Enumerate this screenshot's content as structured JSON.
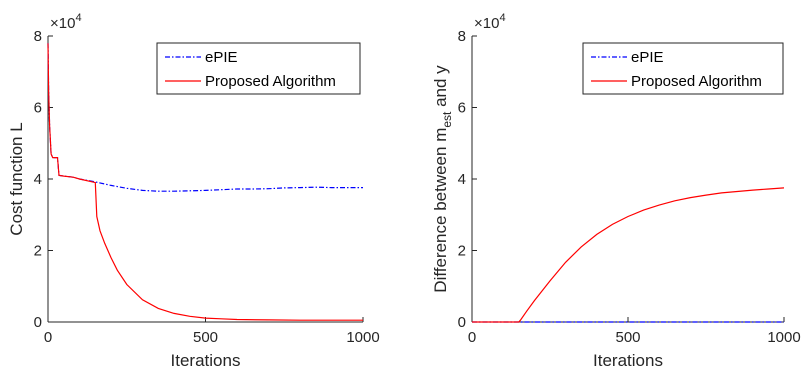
{
  "chart_data": [
    {
      "type": "line",
      "xlabel": "Iterations",
      "ylabel": "Cost function L",
      "exponent_label": "×10",
      "exponent_power": "4",
      "xlim": [
        0,
        1000
      ],
      "ylim": [
        0,
        8
      ],
      "y_scale_factor": 10000,
      "xticks": [
        0,
        500,
        1000
      ],
      "yticks": [
        0,
        2,
        4,
        6,
        8
      ],
      "legend_position": "top-right",
      "series": [
        {
          "name": "ePIE",
          "color": "#0000ff",
          "style": "dash-dot",
          "x": [
            0,
            2,
            5,
            10,
            15,
            30,
            35,
            50,
            80,
            100,
            150,
            200,
            250,
            300,
            350,
            400,
            450,
            500,
            550,
            600,
            650,
            700,
            750,
            800,
            850,
            900,
            950,
            1000
          ],
          "y": [
            7.8,
            6.5,
            5.5,
            4.7,
            4.6,
            4.6,
            4.1,
            4.08,
            4.05,
            4.0,
            3.92,
            3.82,
            3.74,
            3.68,
            3.66,
            3.66,
            3.67,
            3.68,
            3.7,
            3.72,
            3.72,
            3.73,
            3.75,
            3.76,
            3.77,
            3.76,
            3.76,
            3.76
          ]
        },
        {
          "name": "Proposed Algorithm",
          "color": "#ff0000",
          "style": "solid",
          "x": [
            0,
            2,
            5,
            10,
            15,
            30,
            35,
            50,
            80,
            100,
            150,
            155,
            165,
            180,
            200,
            220,
            250,
            300,
            350,
            400,
            450,
            500,
            550,
            600,
            700,
            800,
            900,
            1000
          ],
          "y": [
            7.8,
            6.5,
            5.5,
            4.7,
            4.6,
            4.6,
            4.1,
            4.08,
            4.05,
            4.0,
            3.9,
            2.95,
            2.55,
            2.2,
            1.8,
            1.45,
            1.05,
            0.62,
            0.38,
            0.24,
            0.16,
            0.11,
            0.09,
            0.07,
            0.06,
            0.05,
            0.05,
            0.05
          ]
        }
      ]
    },
    {
      "type": "line",
      "xlabel": "Iterations",
      "ylabel": "Difference between m",
      "ylabel_subscript": "est",
      "ylabel_suffix": " and y",
      "exponent_label": "×10",
      "exponent_power": "4",
      "xlim": [
        0,
        1000
      ],
      "ylim": [
        0,
        8
      ],
      "y_scale_factor": 10000,
      "xticks": [
        0,
        500,
        1000
      ],
      "yticks": [
        0,
        2,
        4,
        6,
        8
      ],
      "legend_position": "top-right",
      "series": [
        {
          "name": "ePIE",
          "color": "#0000ff",
          "style": "dash-dot",
          "x": [
            0,
            1000
          ],
          "y": [
            0,
            0
          ]
        },
        {
          "name": "Proposed Algorithm",
          "color": "#ff0000",
          "style": "solid",
          "x": [
            0,
            150,
            155,
            175,
            200,
            250,
            300,
            350,
            400,
            450,
            500,
            550,
            600,
            650,
            700,
            750,
            800,
            850,
            900,
            950,
            1000
          ],
          "y": [
            0,
            0,
            0.05,
            0.3,
            0.6,
            1.15,
            1.67,
            2.1,
            2.45,
            2.73,
            2.95,
            3.13,
            3.27,
            3.39,
            3.48,
            3.55,
            3.61,
            3.65,
            3.69,
            3.72,
            3.75
          ]
        }
      ]
    }
  ]
}
